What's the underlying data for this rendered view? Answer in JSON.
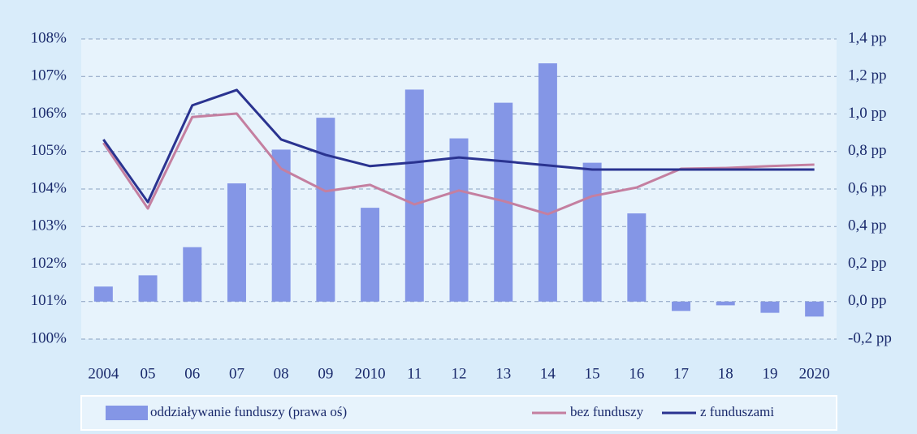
{
  "chart_data": {
    "type": "bar-line",
    "categories": [
      "2004",
      "05",
      "06",
      "07",
      "08",
      "09",
      "2010",
      "11",
      "12",
      "13",
      "14",
      "15",
      "16",
      "17",
      "18",
      "19",
      "2020"
    ],
    "series": [
      {
        "name": "oddziaływanie funduszy (prawa oś)",
        "type": "bar",
        "axis": "y2",
        "color": "#8496e6",
        "values": [
          0.08,
          0.14,
          0.29,
          0.63,
          0.81,
          0.98,
          0.5,
          1.13,
          0.87,
          1.06,
          1.27,
          0.74,
          0.47,
          -0.05,
          -0.02,
          -0.06,
          -0.08
        ]
      },
      {
        "name": "bez funduszy",
        "type": "line",
        "color": "#c47fa0",
        "values": [
          105.23,
          103.48,
          105.92,
          106.01,
          104.54,
          103.94,
          104.11,
          103.59,
          103.96,
          103.68,
          103.33,
          103.81,
          104.04,
          104.54,
          104.56,
          104.61,
          104.65
        ]
      },
      {
        "name": "z funduszami",
        "type": "line",
        "color": "#2a3390",
        "values": [
          105.32,
          103.65,
          106.23,
          106.64,
          105.32,
          104.91,
          104.61,
          104.71,
          104.84,
          104.74,
          104.63,
          104.52,
          104.52,
          104.52,
          104.52,
          104.52,
          104.52
        ]
      }
    ],
    "ylim": [
      100,
      108
    ],
    "yticks": [
      {
        "value": 100,
        "label": "100%"
      },
      {
        "value": 101,
        "label": "101%"
      },
      {
        "value": 102,
        "label": "102%"
      },
      {
        "value": 103,
        "label": "103%"
      },
      {
        "value": 104,
        "label": "104%"
      },
      {
        "value": 105,
        "label": "105%"
      },
      {
        "value": 106,
        "label": "106%"
      },
      {
        "value": 107,
        "label": "107%"
      },
      {
        "value": 108,
        "label": "108%"
      }
    ],
    "y2lim": [
      -0.2,
      1.4
    ],
    "y2ticks": [
      {
        "value": -0.2,
        "label": "-0,2 pp"
      },
      {
        "value": 0,
        "label": "0,0 pp"
      },
      {
        "value": 0.2,
        "label": "0,2 pp"
      },
      {
        "value": 0.4,
        "label": "0,4 pp"
      },
      {
        "value": 0.6,
        "label": "0,6 pp"
      },
      {
        "value": 0.8,
        "label": "0,8 pp"
      },
      {
        "value": 1.0,
        "label": "1,0 pp"
      },
      {
        "value": 1.2,
        "label": "1,2 pp"
      },
      {
        "value": 1.4,
        "label": "1,4 pp"
      }
    ],
    "grid": true,
    "legend": "bottom"
  }
}
